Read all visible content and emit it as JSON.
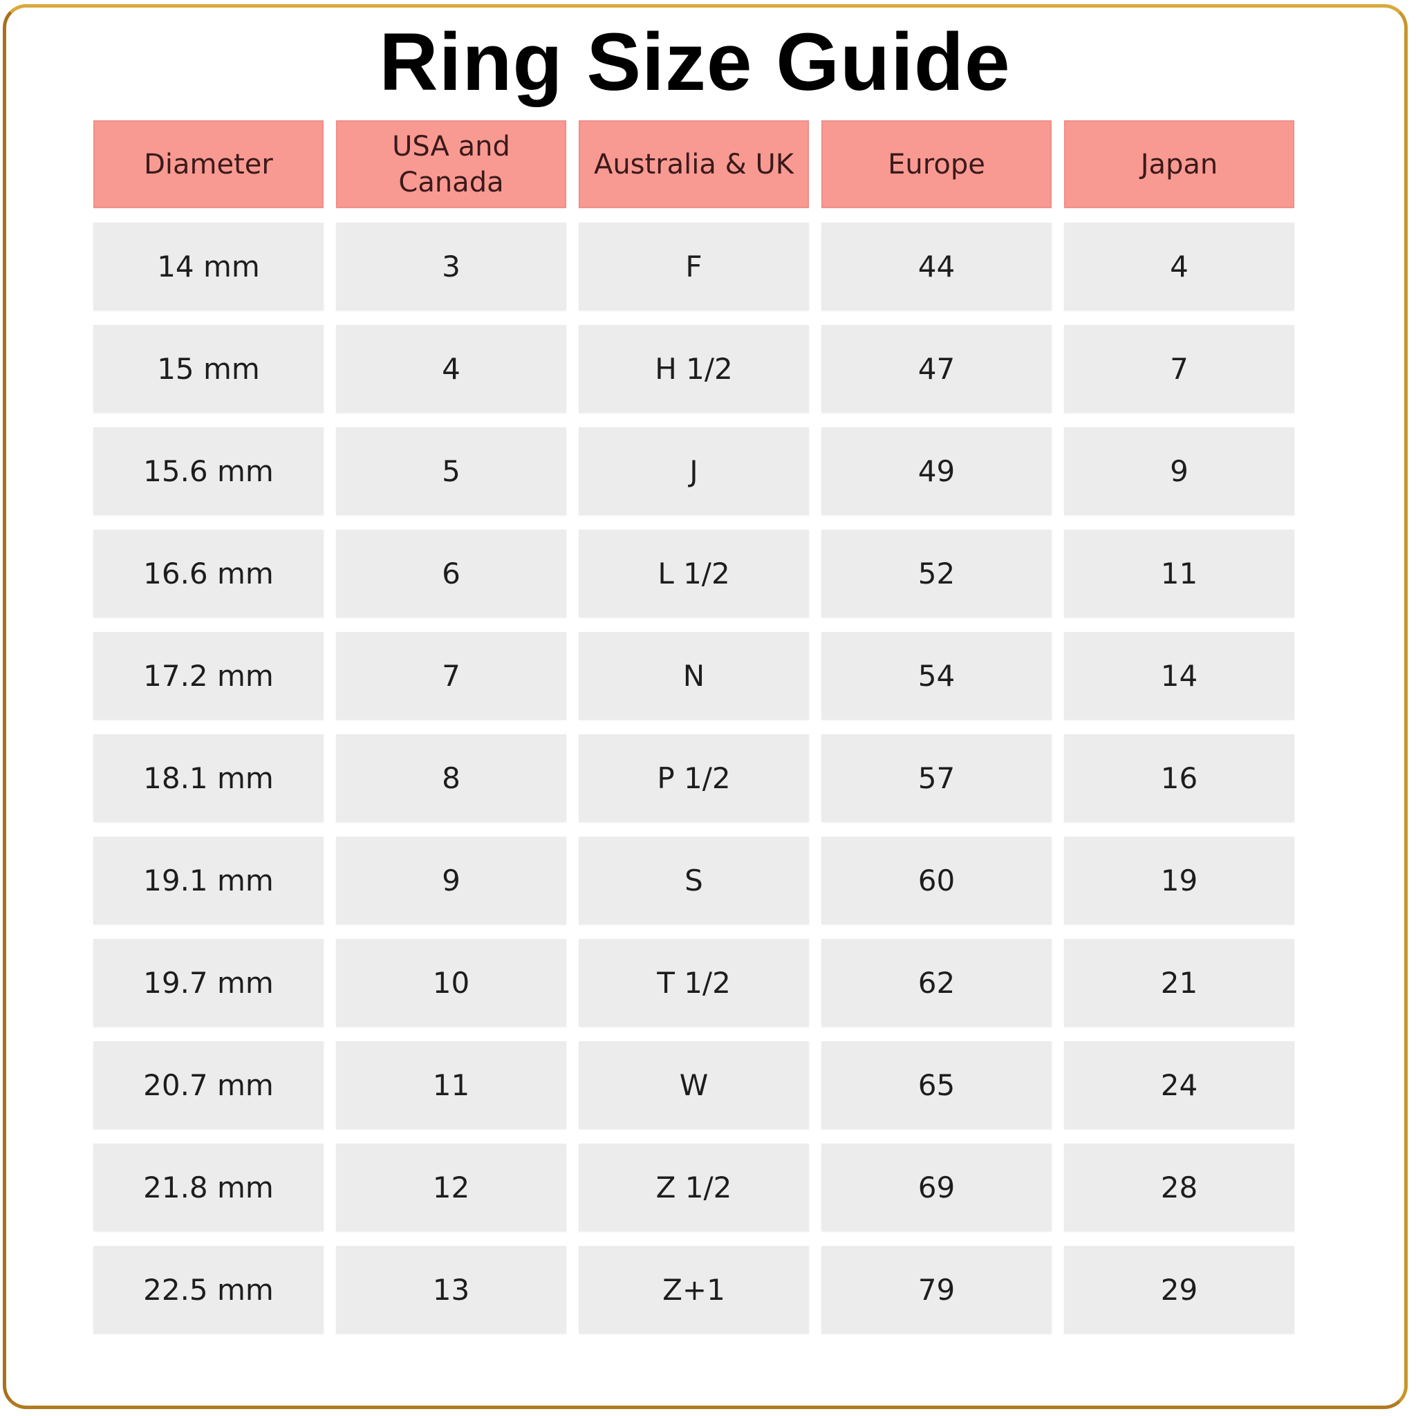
{
  "title": "Ring Size Guide",
  "colors": {
    "border": "#c8962a",
    "header_bg": "#f99a92",
    "cell_bg": "#ececec"
  },
  "table": {
    "headers": [
      "Diameter",
      "USA and Canada",
      "Australia & UK",
      "Europe",
      "Japan"
    ],
    "rows": [
      [
        "14 mm",
        "3",
        "F",
        "44",
        "4"
      ],
      [
        "15 mm",
        "4",
        "H 1/2",
        "47",
        "7"
      ],
      [
        "15.6 mm",
        "5",
        "J",
        "49",
        "9"
      ],
      [
        "16.6 mm",
        "6",
        "L 1/2",
        "52",
        "11"
      ],
      [
        "17.2 mm",
        "7",
        "N",
        "54",
        "14"
      ],
      [
        "18.1 mm",
        "8",
        "P 1/2",
        "57",
        "16"
      ],
      [
        "19.1 mm",
        "9",
        "S",
        "60",
        "19"
      ],
      [
        "19.7 mm",
        "10",
        "T 1/2",
        "62",
        "21"
      ],
      [
        "20.7 mm",
        "11",
        "W",
        "65",
        "24"
      ],
      [
        "21.8 mm",
        "12",
        "Z 1/2",
        "69",
        "28"
      ],
      [
        "22.5 mm",
        "13",
        "Z+1",
        "79",
        "29"
      ]
    ]
  }
}
